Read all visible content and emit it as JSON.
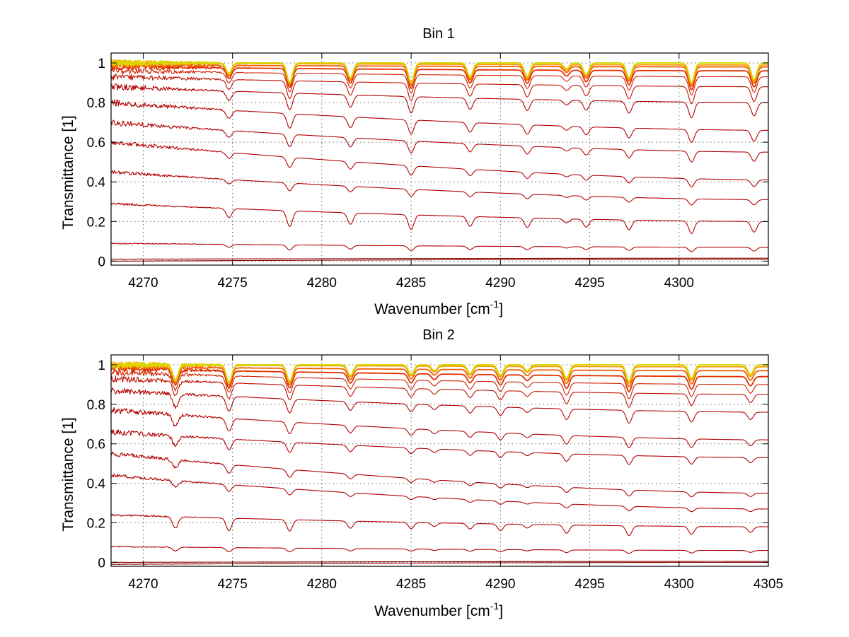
{
  "chart_data": [
    {
      "type": "line",
      "title": "Bin 1",
      "xlabel": "Wavenumber [cm",
      "xlabel_sup": "-1",
      "xlabel_end": "]",
      "ylabel": "Transmittance [1]",
      "xlim": [
        4268.2,
        4305
      ],
      "ylim": [
        -0.02,
        1.05
      ],
      "xticks": [
        4270,
        4275,
        4280,
        4285,
        4290,
        4295,
        4300
      ],
      "xtick_labels": [
        "4270",
        "4275",
        "4280",
        "4285",
        "4290",
        "4295",
        "4300"
      ],
      "yticks": [
        0,
        0.2,
        0.4,
        0.6,
        0.8,
        1
      ],
      "ytick_labels": [
        "0",
        "0.2",
        "0.4",
        "0.6",
        "0.8",
        "1"
      ],
      "grid": true,
      "line_centers": [
        4274.8,
        4278.2,
        4281.6,
        4285.0,
        4288.3,
        4291.5,
        4293.7,
        4294.8,
        4297.2,
        4300.7,
        4304.2
      ],
      "line_weights": [
        0.55,
        1.0,
        0.75,
        1.0,
        0.7,
        0.7,
        0.3,
        0.6,
        0.75,
        1.0,
        0.85
      ],
      "series_levels": [
        {
          "left": 0.0,
          "right": 0.01,
          "color": "#8b0000"
        },
        {
          "left": 0.01,
          "right": 0.015,
          "color": "#8b0000"
        },
        {
          "left": 0.09,
          "right": 0.07,
          "color": "#b30000"
        },
        {
          "left": 0.29,
          "right": 0.2,
          "color": "#b30000"
        },
        {
          "left": 0.45,
          "right": 0.31,
          "color": "#b30000"
        },
        {
          "left": 0.6,
          "right": 0.41,
          "color": "#b30000"
        },
        {
          "left": 0.7,
          "right": 0.55,
          "color": "#b30000"
        },
        {
          "left": 0.8,
          "right": 0.66,
          "color": "#b30000"
        },
        {
          "left": 0.88,
          "right": 0.8,
          "color": "#b30000"
        },
        {
          "left": 0.93,
          "right": 0.88,
          "color": "#c01000"
        },
        {
          "left": 0.96,
          "right": 0.93,
          "color": "#d02000"
        },
        {
          "left": 0.98,
          "right": 0.96,
          "color": "#e03000"
        },
        {
          "left": 0.99,
          "right": 0.98,
          "color": "#f06000"
        },
        {
          "left": 1.0,
          "right": 0.99,
          "color": "#ff9900"
        },
        {
          "left": 1.0,
          "right": 1.0,
          "color": "#ffcc00"
        },
        {
          "left": 1.0,
          "right": 1.0,
          "color": "#cfd900"
        }
      ]
    },
    {
      "type": "line",
      "title": "Bin 2",
      "xlabel": "Wavenumber [cm",
      "xlabel_sup": "-1",
      "xlabel_end": "]",
      "ylabel": "Transmittance [1]",
      "xlim": [
        4268.2,
        4305
      ],
      "ylim": [
        -0.02,
        1.05
      ],
      "xticks": [
        4270,
        4275,
        4280,
        4285,
        4290,
        4295,
        4300,
        4305
      ],
      "xtick_labels": [
        "4270",
        "4275",
        "4280",
        "4285",
        "4290",
        "4295",
        "4300",
        "4305"
      ],
      "yticks": [
        0,
        0.2,
        0.4,
        0.6,
        0.8,
        1
      ],
      "ytick_labels": [
        "0",
        "0.2",
        "0.4",
        "0.6",
        "0.8",
        "1"
      ],
      "grid": true,
      "line_centers": [
        4271.8,
        4274.8,
        4278.2,
        4281.6,
        4285.0,
        4286.3,
        4288.3,
        4290.0,
        4291.5,
        4293.7,
        4297.2,
        4300.7,
        4304.0
      ],
      "line_weights": [
        0.8,
        0.9,
        0.85,
        0.55,
        0.5,
        0.3,
        0.45,
        0.55,
        0.3,
        0.7,
        0.85,
        0.7,
        0.5
      ],
      "series_levels": [
        {
          "left": -0.01,
          "right": 0.0,
          "color": "#8b0000"
        },
        {
          "left": 0.0,
          "right": 0.005,
          "color": "#8b0000"
        },
        {
          "left": 0.08,
          "right": 0.06,
          "color": "#b30000"
        },
        {
          "left": 0.24,
          "right": 0.18,
          "color": "#b30000"
        },
        {
          "left": 0.44,
          "right": 0.27,
          "color": "#b30000"
        },
        {
          "left": 0.55,
          "right": 0.35,
          "color": "#b30000"
        },
        {
          "left": 0.66,
          "right": 0.53,
          "color": "#b30000"
        },
        {
          "left": 0.77,
          "right": 0.62,
          "color": "#b30000"
        },
        {
          "left": 0.87,
          "right": 0.76,
          "color": "#b30000"
        },
        {
          "left": 0.93,
          "right": 0.85,
          "color": "#c01000"
        },
        {
          "left": 0.96,
          "right": 0.9,
          "color": "#d02000"
        },
        {
          "left": 0.98,
          "right": 0.94,
          "color": "#e03000"
        },
        {
          "left": 0.99,
          "right": 0.97,
          "color": "#f06000"
        },
        {
          "left": 1.0,
          "right": 0.99,
          "color": "#ff9900"
        },
        {
          "left": 1.0,
          "right": 1.0,
          "color": "#ffcc00"
        },
        {
          "left": 1.0,
          "right": 1.0,
          "color": "#cfd900"
        }
      ]
    }
  ]
}
